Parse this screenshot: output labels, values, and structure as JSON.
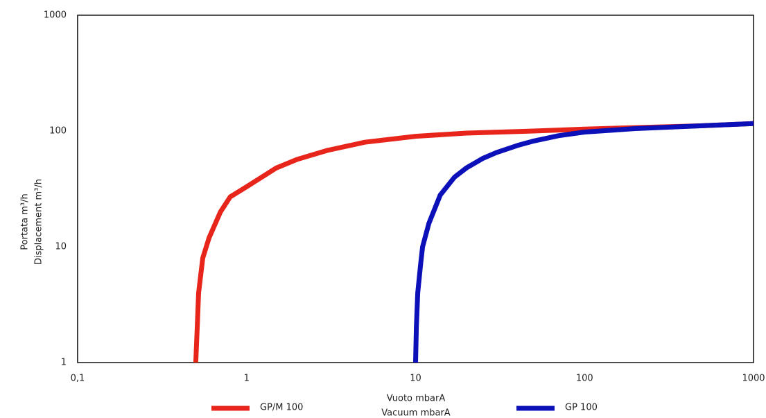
{
  "chart_data": {
    "type": "line",
    "x_label": [
      "Vuoto mbarA",
      "Vacuum mbarA"
    ],
    "y_label": [
      "Portata m³/h",
      "Displacement m³/h"
    ],
    "log_x": true,
    "log_y": true,
    "grid": true,
    "xlim": [
      0.1,
      1000
    ],
    "xticks": [
      {
        "value": 0.1,
        "label": "0,1"
      },
      1,
      10,
      100,
      1000
    ],
    "xminorticks": [
      0.2,
      0.3,
      0.4,
      0.5,
      0.6,
      0.7,
      0.8,
      0.9,
      2,
      3,
      4,
      5,
      6,
      7,
      8,
      9,
      20,
      30,
      40,
      50,
      60,
      70,
      80,
      90,
      200,
      300,
      400,
      500,
      600,
      700,
      800,
      900
    ],
    "ylim": [
      1,
      1000
    ],
    "yticks": [
      1,
      10,
      100,
      1000
    ],
    "yminorticks": [
      2,
      3,
      4,
      5,
      6,
      7,
      8,
      9,
      20,
      30,
      40,
      50,
      60,
      70,
      80,
      90,
      200,
      300,
      400,
      500,
      600,
      700,
      800,
      900
    ],
    "series": [
      {
        "name": "GP/M 100",
        "color": "#e8251b",
        "x": [
          0.5,
          0.51,
          0.52,
          0.55,
          0.6,
          0.7,
          0.8,
          1,
          1.5,
          2,
          3,
          5,
          10,
          20,
          50,
          100,
          200,
          500,
          1000
        ],
        "values": [
          1,
          2,
          4,
          8,
          12,
          20,
          27,
          33,
          48,
          57,
          68,
          80,
          90,
          96,
          100,
          104,
          107,
          111,
          116
        ]
      },
      {
        "name": "GP 100",
        "color": "#0b10b8",
        "x": [
          10,
          10.1,
          10.3,
          10.7,
          11,
          12,
          14,
          17,
          20,
          25,
          30,
          40,
          50,
          70,
          100,
          200,
          500,
          1000
        ],
        "values": [
          1,
          2,
          4,
          7,
          10,
          16,
          28,
          40,
          48,
          58,
          65,
          75,
          82,
          91,
          98,
          105,
          111,
          116
        ]
      }
    ]
  }
}
